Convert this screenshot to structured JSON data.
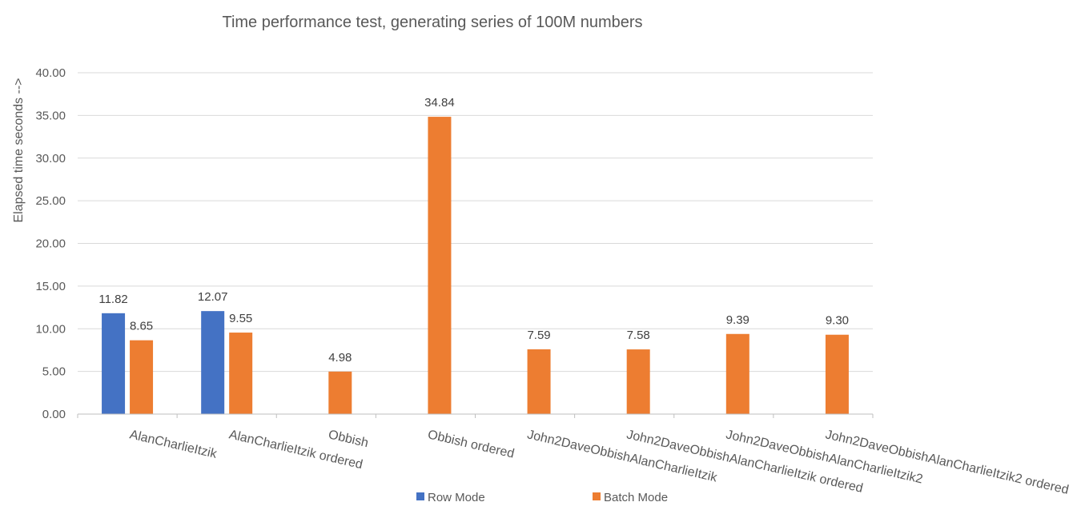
{
  "chart_data": {
    "type": "bar",
    "title": "Time performance test, generating series of 100M numbers",
    "xlabel": "",
    "ylabel": "Elapsed time seconds -->",
    "ylim": [
      0,
      40
    ],
    "ytick_step": 5,
    "ytick_labels": [
      "0.00",
      "5.00",
      "10.00",
      "15.00",
      "20.00",
      "25.00",
      "30.00",
      "35.00",
      "40.00"
    ],
    "grid": true,
    "legend_position": "bottom",
    "categories": [
      "AlanCharlieItzik",
      "AlanCharlieItzik ordered",
      "Obbish",
      "Obbish ordered",
      "John2DaveObbishAlanCharlieItzik",
      "John2DaveObbishAlanCharlieItzik ordered",
      "John2DaveObbishAlanCharlieItzik2",
      "John2DaveObbishAlanCharlieItzik2 ordered"
    ],
    "series": [
      {
        "name": "Row Mode",
        "color": "#4472C4",
        "values": [
          11.82,
          12.07,
          null,
          null,
          null,
          null,
          null,
          null
        ],
        "labels": [
          "11.82",
          "12.07",
          null,
          null,
          null,
          null,
          null,
          null
        ]
      },
      {
        "name": "Batch Mode",
        "color": "#ED7D31",
        "values": [
          8.65,
          9.55,
          4.98,
          34.84,
          7.59,
          7.58,
          9.39,
          9.3
        ],
        "labels": [
          "8.65",
          "9.55",
          "4.98",
          "34.84",
          "7.59",
          "7.58",
          "9.39",
          "9.30"
        ]
      }
    ]
  }
}
